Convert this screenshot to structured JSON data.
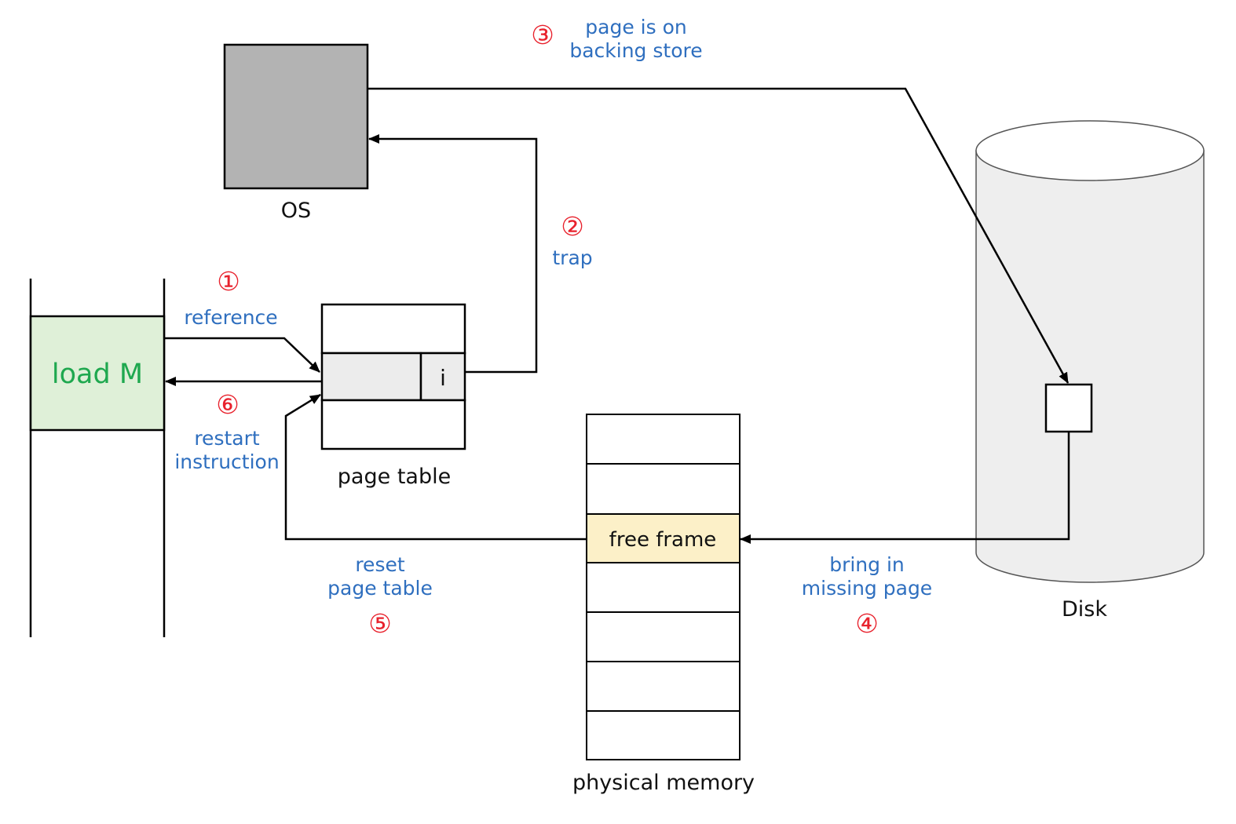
{
  "labels": {
    "os": "OS",
    "page_table": "page table",
    "physical_memory": "physical memory",
    "disk": "Disk",
    "instruction": "load M",
    "invalid_bit": "i",
    "free_frame": "free frame"
  },
  "steps": {
    "s1": {
      "number": "①",
      "line1": "reference"
    },
    "s2": {
      "number": "②",
      "line1": "trap"
    },
    "s3": {
      "number": "③",
      "line1": "page is on",
      "line2": "backing store"
    },
    "s4": {
      "number": "④",
      "line1": "bring in",
      "line2": "missing page"
    },
    "s5": {
      "number": "⑤",
      "line1": "reset",
      "line2": "page table"
    },
    "s6": {
      "number": "⑥",
      "line1": "restart",
      "line2": "instruction"
    }
  },
  "colors": {
    "step_number": "#e8222d",
    "step_text": "#2f6fbf",
    "instruction_text": "#1fa84f",
    "instruction_fill": "#dff0d8",
    "os_fill": "#b3b3b3",
    "free_frame_fill": "#fcf0c8",
    "page_table_entry_fill": "#ececec",
    "disk_fill": "#eeeeee"
  }
}
